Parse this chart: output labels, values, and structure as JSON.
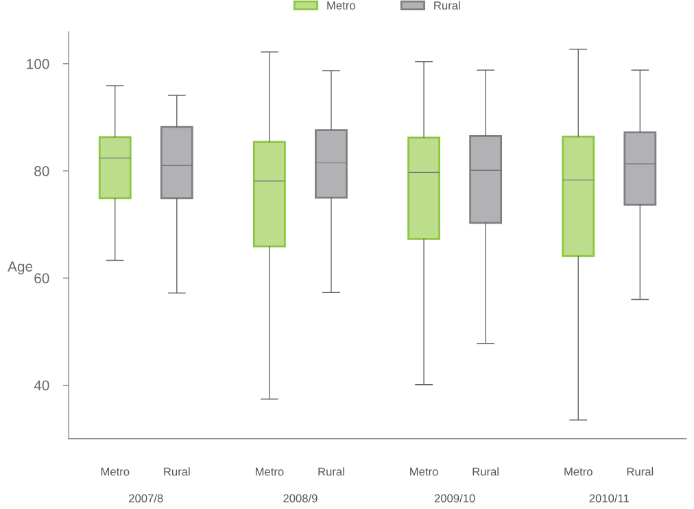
{
  "chart_data": {
    "type": "box",
    "ylabel": "Age",
    "categories": [
      "2007/8",
      "2008/9",
      "2009/10",
      "2010/11"
    ],
    "ylim": [
      30,
      106
    ],
    "yticks": [
      40,
      60,
      80,
      100
    ],
    "grid": false,
    "legend": "top",
    "series": [
      {
        "name": "Metro",
        "color": "#8dc63f",
        "boxes": [
          {
            "low": 63.3,
            "q1": 74.9,
            "median": 82.4,
            "q3": 86.3,
            "high": 95.9
          },
          {
            "low": 37.4,
            "q1": 65.9,
            "median": 78.1,
            "q3": 85.4,
            "high": 102.2
          },
          {
            "low": 40.1,
            "q1": 67.3,
            "median": 79.7,
            "q3": 86.2,
            "high": 100.4
          },
          {
            "low": 33.5,
            "q1": 64.1,
            "median": 78.3,
            "q3": 86.4,
            "high": 102.7
          }
        ]
      },
      {
        "name": "Rural",
        "color": "#7f7f84",
        "boxes": [
          {
            "low": 57.2,
            "q1": 74.9,
            "median": 81.0,
            "q3": 88.2,
            "high": 94.1
          },
          {
            "low": 57.3,
            "q1": 75.0,
            "median": 81.5,
            "q3": 87.6,
            "high": 98.7
          },
          {
            "low": 47.8,
            "q1": 70.3,
            "median": 80.1,
            "q3": 86.5,
            "high": 98.8
          },
          {
            "low": 56.0,
            "q1": 73.7,
            "median": 81.3,
            "q3": 87.2,
            "high": 98.8
          }
        ]
      }
    ]
  }
}
